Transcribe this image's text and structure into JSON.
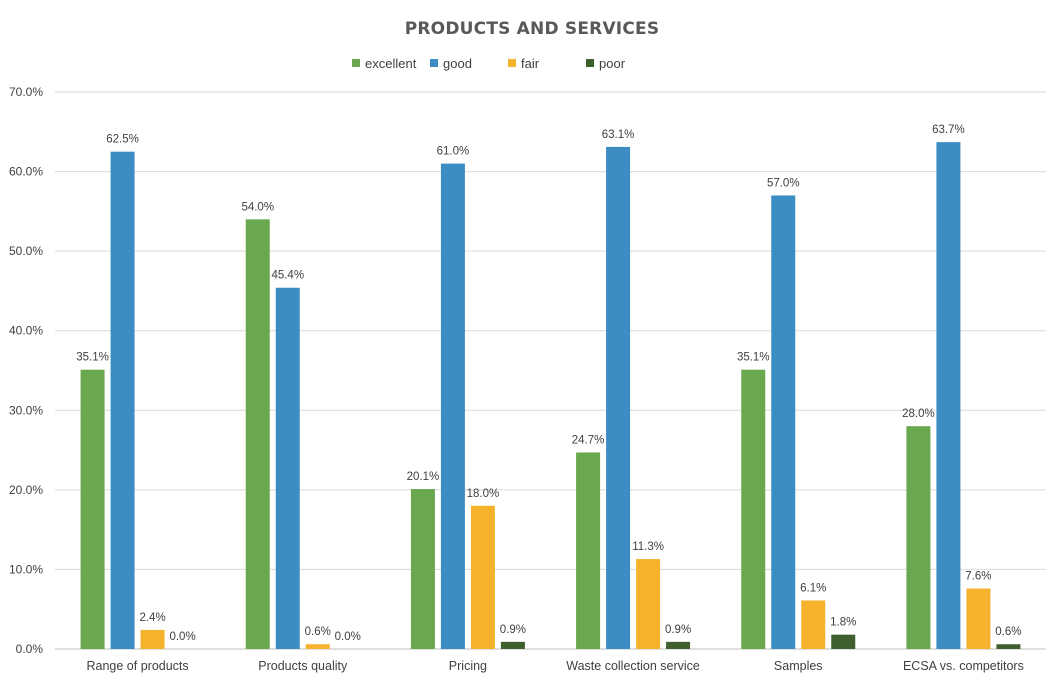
{
  "chart_data": {
    "type": "bar",
    "title": "PRODUCTS AND SERVICES",
    "xlabel": "",
    "ylabel": "",
    "categories": [
      "Range of products",
      "Products quality",
      "Pricing",
      "Waste collection service",
      "Samples",
      "ECSA vs. competitors"
    ],
    "series": [
      {
        "name": "excellent",
        "color": "#6AA84F",
        "values": [
          35.1,
          54.0,
          20.1,
          24.7,
          35.1,
          28.0
        ]
      },
      {
        "name": "good",
        "color": "#3D8DC5",
        "values": [
          62.5,
          45.4,
          61.0,
          63.1,
          57.0,
          63.7
        ]
      },
      {
        "name": "fair",
        "color": "#F5B22D",
        "values": [
          2.4,
          0.6,
          18.0,
          11.3,
          6.1,
          7.6
        ]
      },
      {
        "name": "poor",
        "color": "#3F5F2F",
        "values": [
          0.0,
          0.0,
          0.9,
          0.9,
          1.8,
          0.6
        ]
      }
    ],
    "ylim": [
      0,
      70
    ],
    "yticks": [
      0,
      10,
      20,
      30,
      40,
      50,
      60,
      70
    ],
    "tick_format": "percent_1dp",
    "grid": true,
    "legend_position": "top-center",
    "data_labels": true
  }
}
